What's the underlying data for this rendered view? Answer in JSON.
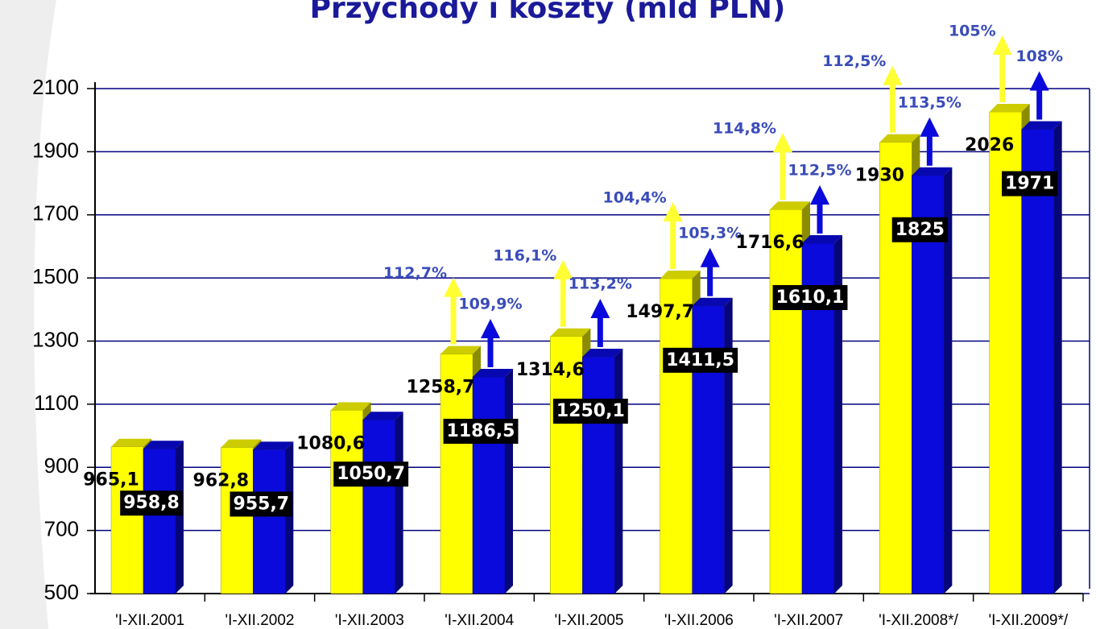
{
  "chart_data": {
    "type": "bar3d",
    "title": "Przychody i koszty (mld PLN)",
    "categories": [
      "'I-XII.2001",
      "'I-XII.2002",
      "'I-XII.2003",
      "'I-XII.2004",
      "'I-XII.2005",
      "'I-XII.2006",
      "'I-XII.2007",
      "'I-XII.2008*/",
      "'I-XII.2009*/"
    ],
    "series": [
      {
        "color": "#ffff00",
        "values": [
          965.1,
          962.8,
          1080.6,
          1258.7,
          1314.6,
          1497.7,
          1716.6,
          1930,
          2026
        ],
        "value_labels": [
          "965,1",
          "962,8",
          "1080,6",
          "1258,7",
          "1314,6",
          "1497,7",
          "1716,6",
          "1930",
          "2026"
        ],
        "growth_labels": [
          null,
          null,
          null,
          "112,7%",
          "116,1%",
          "104,4%",
          "114,8%",
          "112,5%",
          "105%"
        ]
      },
      {
        "color": "#0a0adc",
        "values": [
          958.8,
          955.7,
          1050.7,
          1186.5,
          1250.1,
          1411.5,
          1610.1,
          1825,
          1971
        ],
        "value_labels": [
          "958,8",
          "955,7",
          "1050,7",
          "1186,5",
          "1250,1",
          "1411,5",
          "1610,1",
          "1825",
          "1971"
        ],
        "growth_labels": [
          null,
          null,
          null,
          "109,9%",
          "113,2%",
          "105,3%",
          "112,5%",
          "113,5%",
          "108%"
        ]
      }
    ],
    "ylim": [
      500,
      2100
    ],
    "yticks": [
      500,
      700,
      900,
      1100,
      1300,
      1500,
      1700,
      1900,
      2100
    ],
    "grid": true
  }
}
